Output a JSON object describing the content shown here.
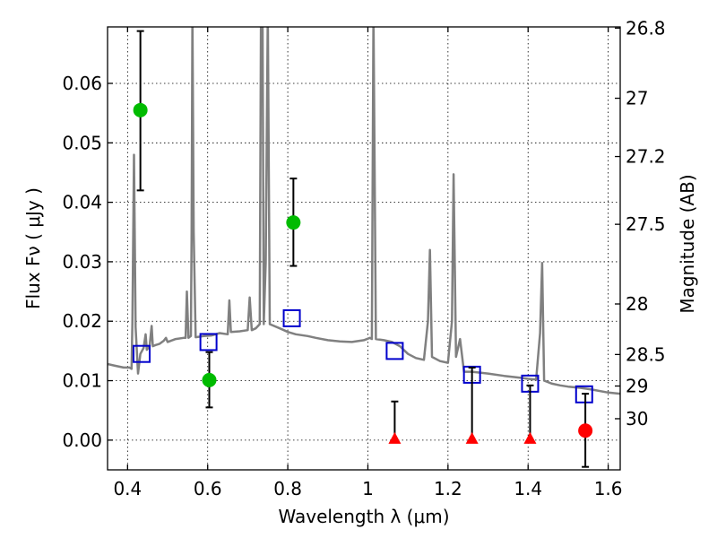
{
  "chart_data": {
    "type": "scatter",
    "xlabel": "Wavelength  λ (μm)",
    "ylabel": "Flux  Fν  ( μJy )",
    "y2label": "Magnitude (AB)",
    "xlim": [
      0.35,
      1.63
    ],
    "ylim": [
      -0.005,
      0.0695
    ],
    "grid": true,
    "x_ticks": [
      {
        "v": 0.4,
        "label": "0.4"
      },
      {
        "v": 0.6,
        "label": "0.6"
      },
      {
        "v": 0.8,
        "label": "0.8"
      },
      {
        "v": 1.0,
        "label": "1"
      },
      {
        "v": 1.2,
        "label": "1.2"
      },
      {
        "v": 1.4,
        "label": "1.4"
      },
      {
        "v": 1.6,
        "label": "1.6"
      }
    ],
    "y_ticks": [
      {
        "v": 0.0,
        "label": "0.00"
      },
      {
        "v": 0.01,
        "label": "0.01"
      },
      {
        "v": 0.02,
        "label": "0.02"
      },
      {
        "v": 0.03,
        "label": "0.03"
      },
      {
        "v": 0.04,
        "label": "0.04"
      },
      {
        "v": 0.05,
        "label": "0.05"
      },
      {
        "v": 0.06,
        "label": "0.06"
      }
    ],
    "y2_ticks": [
      {
        "label": "26.8",
        "flux": 0.0693
      },
      {
        "label": "27",
        "flux": 0.0575
      },
      {
        "label": "27.2",
        "flux": 0.0477
      },
      {
        "label": "27.5",
        "flux": 0.0363
      },
      {
        "label": "28",
        "flux": 0.0229
      },
      {
        "label": "28.5",
        "flux": 0.0144
      },
      {
        "label": "29",
        "flux": 0.0091
      },
      {
        "label": "30",
        "flux": 0.0036
      }
    ],
    "colors": {
      "sed": "#808080",
      "model_points": "#0000cc",
      "detections": "#00bb00",
      "upper_limits": "#ff0000",
      "errorbars": "#000000"
    },
    "series": [
      {
        "kind": "line",
        "points": [
          [
            0.35,
            0.0128
          ],
          [
            0.37,
            0.0125
          ],
          [
            0.39,
            0.0122
          ],
          [
            0.405,
            0.0122
          ],
          [
            0.41,
            0.012
          ],
          [
            0.412,
            0.0195
          ],
          [
            0.416,
            0.048
          ],
          [
            0.42,
            0.019
          ],
          [
            0.426,
            0.0112
          ],
          [
            0.432,
            0.0145
          ],
          [
            0.44,
            0.0155
          ],
          [
            0.445,
            0.0178
          ],
          [
            0.448,
            0.0152
          ],
          [
            0.455,
            0.0158
          ],
          [
            0.46,
            0.0192
          ],
          [
            0.463,
            0.0158
          ],
          [
            0.47,
            0.016
          ],
          [
            0.48,
            0.0162
          ],
          [
            0.49,
            0.0167
          ],
          [
            0.496,
            0.0172
          ],
          [
            0.5,
            0.0165
          ],
          [
            0.52,
            0.017
          ],
          [
            0.54,
            0.0172
          ],
          [
            0.545,
            0.0172
          ],
          [
            0.548,
            0.025
          ],
          [
            0.552,
            0.0172
          ],
          [
            0.558,
            0.0175
          ],
          [
            0.56,
            0.035
          ],
          [
            0.562,
            0.072
          ],
          [
            0.565,
            0.035
          ],
          [
            0.57,
            0.0173
          ],
          [
            0.59,
            0.0175
          ],
          [
            0.61,
            0.0176
          ],
          [
            0.63,
            0.018
          ],
          [
            0.65,
            0.0178
          ],
          [
            0.654,
            0.0235
          ],
          [
            0.658,
            0.0182
          ],
          [
            0.68,
            0.0183
          ],
          [
            0.7,
            0.0185
          ],
          [
            0.705,
            0.024
          ],
          [
            0.71,
            0.0185
          ],
          [
            0.72,
            0.0188
          ],
          [
            0.73,
            0.0195
          ],
          [
            0.733,
            0.072
          ],
          [
            0.737,
            0.072
          ],
          [
            0.74,
            0.0195
          ],
          [
            0.745,
            0.03
          ],
          [
            0.75,
            0.072
          ],
          [
            0.755,
            0.0195
          ],
          [
            0.78,
            0.0188
          ],
          [
            0.8,
            0.0182
          ],
          [
            0.82,
            0.0178
          ],
          [
            0.85,
            0.0175
          ],
          [
            0.87,
            0.0172
          ],
          [
            0.9,
            0.0168
          ],
          [
            0.93,
            0.0166
          ],
          [
            0.96,
            0.0165
          ],
          [
            0.99,
            0.0168
          ],
          [
            1.005,
            0.0172
          ],
          [
            1.01,
            0.017
          ],
          [
            1.014,
            0.072
          ],
          [
            1.02,
            0.017
          ],
          [
            1.04,
            0.0168
          ],
          [
            1.06,
            0.0165
          ],
          [
            1.08,
            0.0158
          ],
          [
            1.1,
            0.0145
          ],
          [
            1.12,
            0.0138
          ],
          [
            1.14,
            0.0135
          ],
          [
            1.15,
            0.02
          ],
          [
            1.155,
            0.032
          ],
          [
            1.16,
            0.014
          ],
          [
            1.18,
            0.0133
          ],
          [
            1.2,
            0.013
          ],
          [
            1.21,
            0.02
          ],
          [
            1.214,
            0.0447
          ],
          [
            1.22,
            0.014
          ],
          [
            1.23,
            0.017
          ],
          [
            1.24,
            0.0115
          ],
          [
            1.26,
            0.0115
          ],
          [
            1.3,
            0.0112
          ],
          [
            1.34,
            0.0108
          ],
          [
            1.38,
            0.0105
          ],
          [
            1.4,
            0.0103
          ],
          [
            1.42,
            0.0102
          ],
          [
            1.43,
            0.018
          ],
          [
            1.435,
            0.0298
          ],
          [
            1.44,
            0.01
          ],
          [
            1.46,
            0.0095
          ],
          [
            1.48,
            0.0092
          ],
          [
            1.5,
            0.009
          ],
          [
            1.53,
            0.0088
          ],
          [
            1.56,
            0.0085
          ],
          [
            1.6,
            0.008
          ],
          [
            1.63,
            0.0078
          ]
        ]
      },
      {
        "name": "model_bands",
        "kind": "open_square",
        "points": [
          [
            0.435,
            0.0145
          ],
          [
            0.602,
            0.0165
          ],
          [
            0.81,
            0.0205
          ],
          [
            1.067,
            0.015
          ],
          [
            1.26,
            0.011
          ],
          [
            1.405,
            0.0095
          ],
          [
            1.54,
            0.0077
          ]
        ]
      },
      {
        "name": "detections",
        "kind": "filled_circle",
        "points": [
          {
            "x": 0.432,
            "y": 0.0555,
            "err_lo": 0.042,
            "err_hi": 0.0688
          },
          {
            "x": 0.604,
            "y": 0.0101,
            "err_lo": 0.0055,
            "err_hi": 0.0148
          },
          {
            "x": 0.814,
            "y": 0.0366,
            "err_lo": 0.0293,
            "err_hi": 0.044
          }
        ]
      },
      {
        "name": "upper_limits",
        "kind": "triangle",
        "points": [
          {
            "x": 1.067,
            "y": 0.0,
            "err_lo": 0.0,
            "err_hi": 0.0065
          },
          {
            "x": 1.26,
            "y": 0.0,
            "err_lo": 0.0,
            "err_hi": 0.0122
          },
          {
            "x": 1.405,
            "y": 0.0,
            "err_lo": 0.0,
            "err_hi": 0.0092
          }
        ]
      },
      {
        "name": "red_point",
        "kind": "filled_circle_red",
        "points": [
          {
            "x": 1.543,
            "y": 0.0016,
            "err_lo": -0.0045,
            "err_hi": 0.0078
          }
        ]
      }
    ]
  }
}
